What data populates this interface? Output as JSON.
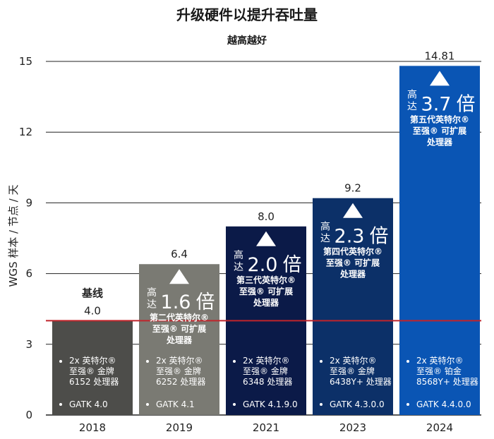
{
  "chart_data": {
    "type": "bar",
    "title": "升级硬件以提升吞吐量",
    "subtitle": "越高越好",
    "xlabel": "",
    "ylabel": "WGS 样本 / 节点 / 天",
    "ylim": [
      0,
      15
    ],
    "yticks": [
      "0",
      "3",
      "6",
      "9",
      "12",
      "15"
    ],
    "ytick_values": [
      0,
      3,
      6,
      9,
      12,
      15
    ],
    "grid": true,
    "baseline_value": 4.0,
    "baseline_label": "基线",
    "categories": [
      "2018",
      "2019",
      "2021",
      "2023",
      "2024"
    ],
    "values": [
      4.0,
      6.4,
      8.0,
      9.2,
      14.81
    ],
    "value_labels": [
      "4.0",
      "6.4",
      "8.0",
      "9.2",
      "14.81"
    ],
    "bar_colors": [
      "#4d4d4a",
      "#7a7a73",
      "#0b1a48",
      "#0c3068",
      "#0a55b4"
    ],
    "gains": [
      null,
      {
        "prefix_top": "高",
        "prefix_bottom": "达",
        "number": "1.6",
        "unit": "倍"
      },
      {
        "prefix_top": "高",
        "prefix_bottom": "达",
        "number": "2.0",
        "unit": "倍"
      },
      {
        "prefix_top": "高",
        "prefix_bottom": "达",
        "number": "2.3",
        "unit": "倍"
      },
      {
        "prefix_top": "高",
        "prefix_bottom": "达",
        "number": "3.7",
        "unit": "倍"
      }
    ],
    "cpu_gen": [
      null,
      [
        "第二代英特尔®",
        "至强® 可扩展",
        "处理器"
      ],
      [
        "第三代英特尔®",
        "至强® 可扩展",
        "处理器"
      ],
      [
        "第四代英特尔®",
        "至强® 可扩展",
        "处理器"
      ],
      [
        "第五代英特尔®",
        "至强® 可扩展",
        "处理器"
      ]
    ],
    "hardware": [
      [
        "2x 英特尔®",
        "至强® 金牌",
        "6152 处理器"
      ],
      [
        "2x 英特尔®",
        "至强® 金牌",
        "6252 处理器"
      ],
      [
        "2x 英特尔®",
        "至强® 金牌",
        "6348 处理器"
      ],
      [
        "2x 英特尔®",
        "至强® 金牌",
        "6438Y+ 处理器"
      ],
      [
        "2x 英特尔®",
        "至强® 铂金",
        "8568Y+ 处理器"
      ]
    ],
    "software": [
      "GATK 4.0",
      "GATK 4.1",
      "GATK 4.1.9.0",
      "GATK 4.3.0.0",
      "GATK 4.4.0.0"
    ],
    "colors": {
      "baseline_line": "#c0242b",
      "grid": "#222222",
      "gain_text": "#ffffff"
    }
  }
}
